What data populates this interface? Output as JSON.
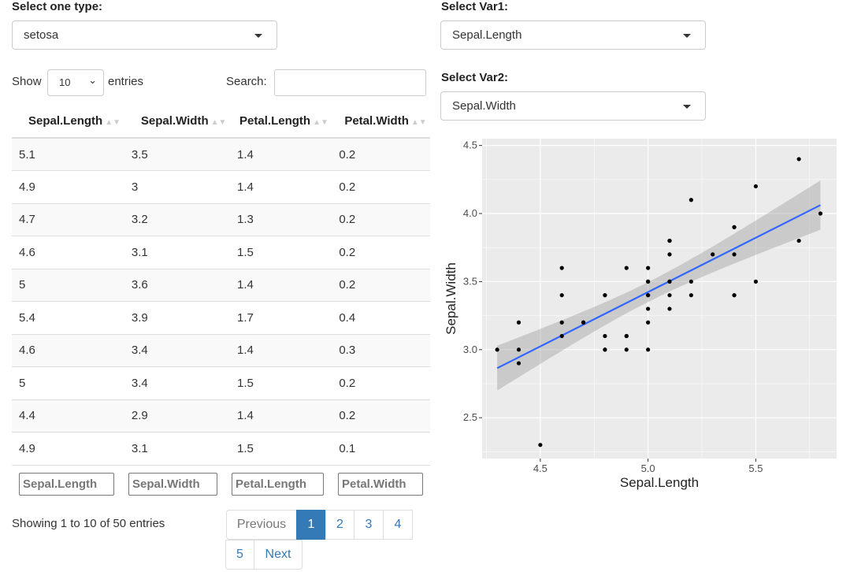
{
  "type_select": {
    "label": "Select one type:",
    "value": "setosa"
  },
  "var1_select": {
    "label": "Select Var1:",
    "value": "Sepal.Length"
  },
  "var2_select": {
    "label": "Select Var2:",
    "value": "Sepal.Width"
  },
  "table": {
    "show_label": "Show",
    "length_value": "10",
    "entries_label": "entries",
    "search_label": "Search:",
    "search_value": "",
    "columns": [
      "Sepal.Length",
      "Sepal.Width",
      "Petal.Length",
      "Petal.Width"
    ],
    "rows": [
      [
        "5.1",
        "3.5",
        "1.4",
        "0.2"
      ],
      [
        "4.9",
        "3",
        "1.4",
        "0.2"
      ],
      [
        "4.7",
        "3.2",
        "1.3",
        "0.2"
      ],
      [
        "4.6",
        "3.1",
        "1.5",
        "0.2"
      ],
      [
        "5",
        "3.6",
        "1.4",
        "0.2"
      ],
      [
        "5.4",
        "3.9",
        "1.7",
        "0.4"
      ],
      [
        "4.6",
        "3.4",
        "1.4",
        "0.3"
      ],
      [
        "5",
        "3.4",
        "1.5",
        "0.2"
      ],
      [
        "4.4",
        "2.9",
        "1.4",
        "0.2"
      ],
      [
        "4.9",
        "3.1",
        "1.5",
        "0.1"
      ]
    ],
    "filters": [
      "Sepal.Length",
      "Sepal.Width",
      "Petal.Length",
      "Petal.Width"
    ],
    "info": "Showing 1 to 10 of 50 entries",
    "pagination": {
      "previous": "Previous",
      "pages": [
        "1",
        "2",
        "3",
        "4",
        "5"
      ],
      "current": "1",
      "next": "Next"
    }
  },
  "chart_data": {
    "type": "scatter",
    "xlabel": "Sepal.Length",
    "ylabel": "Sepal.Width",
    "xlim": [
      4.23,
      5.875
    ],
    "ylim": [
      2.2,
      4.55
    ],
    "xticks": [
      "4.5",
      "5.0",
      "5.5"
    ],
    "yticks": [
      "2.5",
      "3.0",
      "3.5",
      "4.0",
      "4.5"
    ],
    "grid": true,
    "smooth": {
      "method": "lm",
      "color": "#3366ff",
      "intercept": -0.5694,
      "slope": 0.7985,
      "resid_se": 0.2565,
      "se_band": true
    },
    "x": [
      5.1,
      4.9,
      4.7,
      4.6,
      5.0,
      5.4,
      4.6,
      5.0,
      4.4,
      4.9,
      5.4,
      4.8,
      4.8,
      4.3,
      5.8,
      5.7,
      5.4,
      5.1,
      5.7,
      5.1,
      5.4,
      5.1,
      4.6,
      5.1,
      4.8,
      5.0,
      5.0,
      5.2,
      5.2,
      4.7,
      4.8,
      5.4,
      5.2,
      5.5,
      4.9,
      5.0,
      5.5,
      4.9,
      4.4,
      5.1,
      5.0,
      4.5,
      4.4,
      5.0,
      5.1,
      4.8,
      5.1,
      4.6,
      5.3,
      5.0
    ],
    "y": [
      3.5,
      3.0,
      3.2,
      3.1,
      3.6,
      3.9,
      3.4,
      3.4,
      2.9,
      3.1,
      3.7,
      3.4,
      3.0,
      3.0,
      4.0,
      4.4,
      3.9,
      3.5,
      3.8,
      3.8,
      3.4,
      3.7,
      3.6,
      3.3,
      3.4,
      3.0,
      3.4,
      3.5,
      3.4,
      3.2,
      3.1,
      3.4,
      4.1,
      4.2,
      3.1,
      3.2,
      3.5,
      3.6,
      3.0,
      3.4,
      3.5,
      2.3,
      3.2,
      3.5,
      3.8,
      3.0,
      3.8,
      3.2,
      3.7,
      3.3
    ]
  }
}
